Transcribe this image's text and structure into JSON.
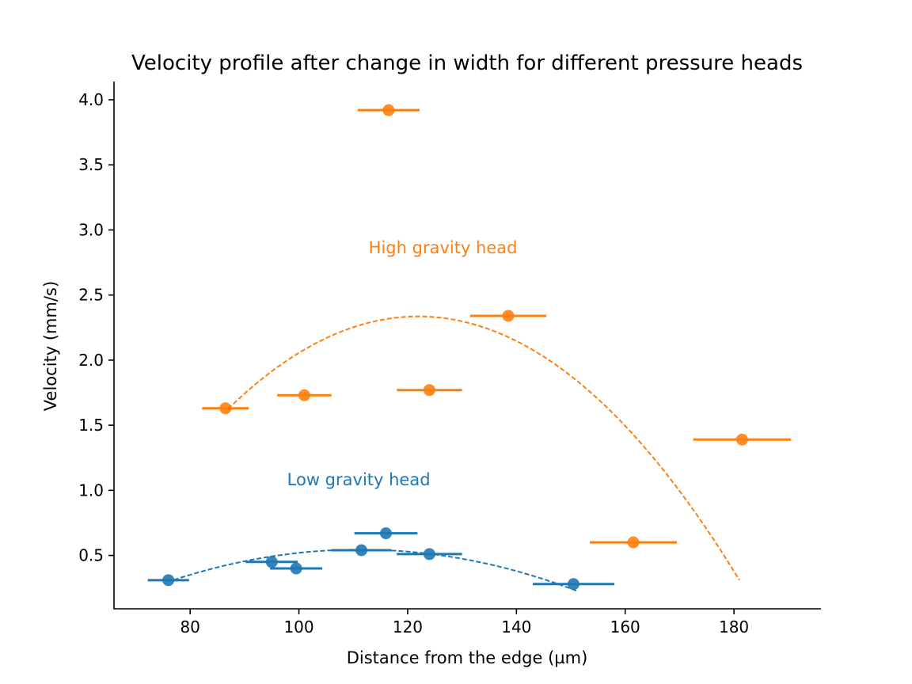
{
  "chart_data": {
    "type": "scatter",
    "title": "Velocity profile after change in width for different pressure heads",
    "xlabel": "Distance from the edge (µm)",
    "ylabel": "Velocity (mm/s)",
    "xlim": [
      66,
      196
    ],
    "ylim": [
      0.09,
      4.14
    ],
    "xticks": [
      80,
      100,
      120,
      140,
      160,
      180
    ],
    "xtick_labels": [
      "80",
      "100",
      "120",
      "140",
      "160",
      "180"
    ],
    "yticks": [
      0.5,
      1.0,
      1.5,
      2.0,
      2.5,
      3.0,
      3.5,
      4.0
    ],
    "ytick_labels": [
      "0.5",
      "1.0",
      "1.5",
      "2.0",
      "2.5",
      "3.0",
      "3.5",
      "4.0"
    ],
    "grid": false,
    "legend": "none",
    "series": [
      {
        "color": "#1f77b4",
        "points": [
          {
            "x": 76,
            "y": 0.31,
            "xerr": 3.8
          },
          {
            "x": 95,
            "y": 0.45,
            "xerr": 4.8
          },
          {
            "x": 99.5,
            "y": 0.4,
            "xerr": 4.8
          },
          {
            "x": 111.5,
            "y": 0.54,
            "xerr": 5.5
          },
          {
            "x": 116,
            "y": 0.67,
            "xerr": 5.8
          },
          {
            "x": 124,
            "y": 0.51,
            "xerr": 6
          },
          {
            "x": 150.5,
            "y": 0.28,
            "xerr": 7.5
          }
        ],
        "fit": {
          "type": "quadratic",
          "x_range": [
            77,
            151
          ],
          "coeffs": [
            -0.000199,
            0.04426,
            -1.9162
          ]
        }
      },
      {
        "color": "#ff7f0e",
        "points": [
          {
            "x": 86.5,
            "y": 1.63,
            "xerr": 4.3
          },
          {
            "x": 101,
            "y": 1.73,
            "xerr": 5
          },
          {
            "x": 116.5,
            "y": 3.92,
            "xerr": 5.7
          },
          {
            "x": 124,
            "y": 1.77,
            "xerr": 6
          },
          {
            "x": 138.5,
            "y": 2.34,
            "xerr": 7
          },
          {
            "x": 161.5,
            "y": 0.6,
            "xerr": 8
          },
          {
            "x": 181.5,
            "y": 1.39,
            "xerr": 9
          }
        ],
        "fit": {
          "type": "quadratic",
          "x_range": [
            87,
            181
          ],
          "coeffs": [
            -0.000581,
            0.14171,
            -6.3051
          ]
        }
      }
    ],
    "annotations": [
      {
        "text": "High gravity head",
        "x": 126.5,
        "y": 2.82,
        "color": "#ff7f0e"
      },
      {
        "text": "Low gravity head",
        "x": 111,
        "y": 1.04,
        "color": "#1f77b4"
      }
    ]
  }
}
